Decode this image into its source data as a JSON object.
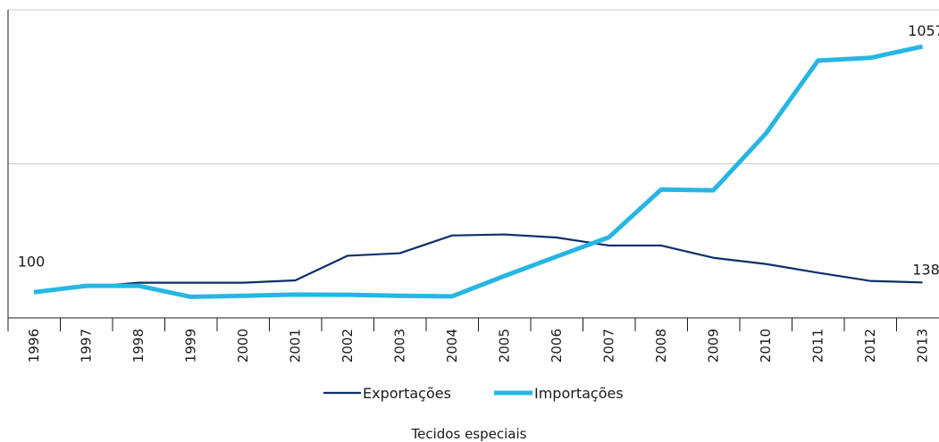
{
  "chart_data": {
    "type": "line",
    "title": "Tecidos especiais",
    "x": [
      "1996",
      "1997",
      "1998",
      "1999",
      "2000",
      "2001",
      "2002",
      "2003",
      "2004",
      "2005",
      "2006",
      "2007",
      "2008",
      "2009",
      "2010",
      "2011",
      "2012",
      "2013"
    ],
    "series": [
      {
        "name": "Exportações",
        "color": "#0d2f6b",
        "values": [
          100,
          120,
          137,
          137,
          137,
          146,
          242,
          252,
          321,
          325,
          313,
          282,
          282,
          234,
          210,
          176,
          144,
          138
        ]
      },
      {
        "name": "Importações",
        "color": "#27b6e3",
        "values": [
          100,
          125,
          125,
          82,
          86,
          91,
          90,
          86,
          84,
          163,
          239,
          314,
          500,
          497,
          717,
          1002,
          1013,
          1057
        ]
      }
    ],
    "ylim": [
      0,
      1200
    ],
    "gridlines": [
      600,
      1200
    ],
    "annotations": [
      {
        "series": "Exportações",
        "x": "1996",
        "label": "100"
      },
      {
        "series": "Exportações",
        "x": "2013",
        "label": "138"
      },
      {
        "series": "Importações",
        "x": "2013",
        "label": "1057"
      }
    ],
    "legend_position": "bottom",
    "grid": true
  }
}
